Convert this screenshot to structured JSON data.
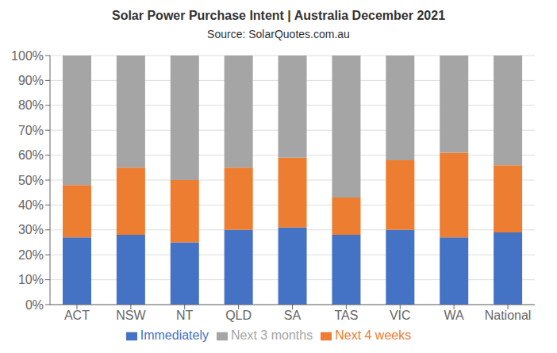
{
  "chart_data": {
    "type": "bar",
    "stacked": true,
    "title": "Solar Power Purchase Intent | Australia December 2021",
    "subtitle": "Source: SolarQuotes.com.au",
    "categories": [
      "ACT",
      "NSW",
      "NT",
      "QLD",
      "SA",
      "TAS",
      "VIC",
      "WA",
      "National"
    ],
    "series": [
      {
        "name": "Immediately",
        "color": "#4472C4",
        "values": [
          27,
          28,
          25,
          30,
          31,
          28,
          30,
          27,
          29
        ]
      },
      {
        "name": "Next 4 weeks",
        "color": "#ED7D31",
        "values": [
          21,
          27,
          25,
          25,
          28,
          15,
          28,
          34,
          27
        ]
      },
      {
        "name": "Next 3 months",
        "color": "#A5A5A5",
        "values": [
          52,
          45,
          50,
          45,
          41,
          57,
          42,
          39,
          44
        ]
      }
    ],
    "ylim": [
      0,
      100
    ],
    "yticks": [
      {
        "value": 0,
        "label": "0%"
      },
      {
        "value": 10,
        "label": "10%"
      },
      {
        "value": 20,
        "label": "20%"
      },
      {
        "value": 30,
        "label": "30%"
      },
      {
        "value": 40,
        "label": "40%"
      },
      {
        "value": 50,
        "label": "50%"
      },
      {
        "value": 60,
        "label": "60%"
      },
      {
        "value": 70,
        "label": "70%"
      },
      {
        "value": 80,
        "label": "80%"
      },
      {
        "value": 90,
        "label": "90%"
      },
      {
        "value": 100,
        "label": "100%"
      }
    ],
    "grid": true,
    "legend": "bottom"
  }
}
